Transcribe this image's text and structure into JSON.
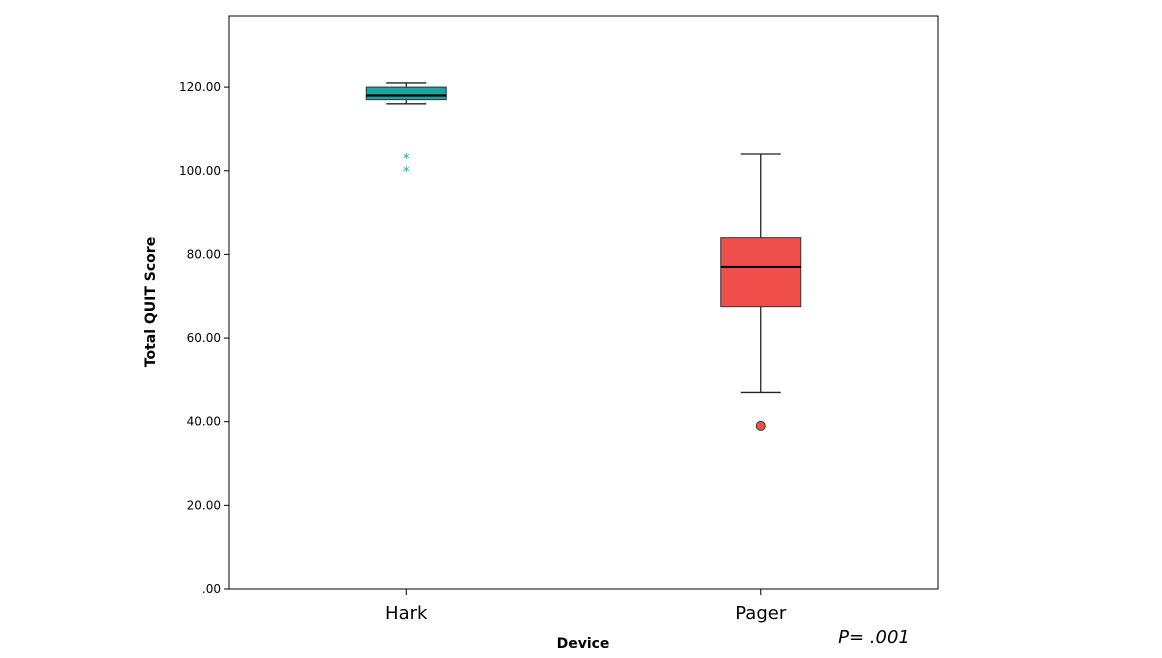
{
  "chart_data": {
    "type": "boxplot",
    "xlabel": "Device",
    "ylabel": "Total QUIT Score",
    "ylim": [
      0,
      137
    ],
    "yticks": [
      0,
      20,
      40,
      60,
      80,
      100,
      120
    ],
    "ytick_labels": [
      ".00",
      "20.00",
      "40.00",
      "60.00",
      "80.00",
      "100.00",
      "120.00"
    ],
    "categories": [
      "Hark",
      "Pager"
    ],
    "grid": false,
    "legend": "none",
    "annotation": "P= .001",
    "series": [
      {
        "category": "Hark",
        "color": "#1aa3a0",
        "whisker_low": 116,
        "q1": 117,
        "median": 118,
        "q3": 120,
        "whisker_high": 121,
        "outliers_extreme": [
          103,
          100
        ],
        "outliers": []
      },
      {
        "category": "Pager",
        "color": "#f04e4b",
        "whisker_low": 47,
        "q1": 67.5,
        "median": 77,
        "q3": 84,
        "whisker_high": 104,
        "outliers_extreme": [],
        "outliers": [
          39
        ]
      }
    ]
  }
}
